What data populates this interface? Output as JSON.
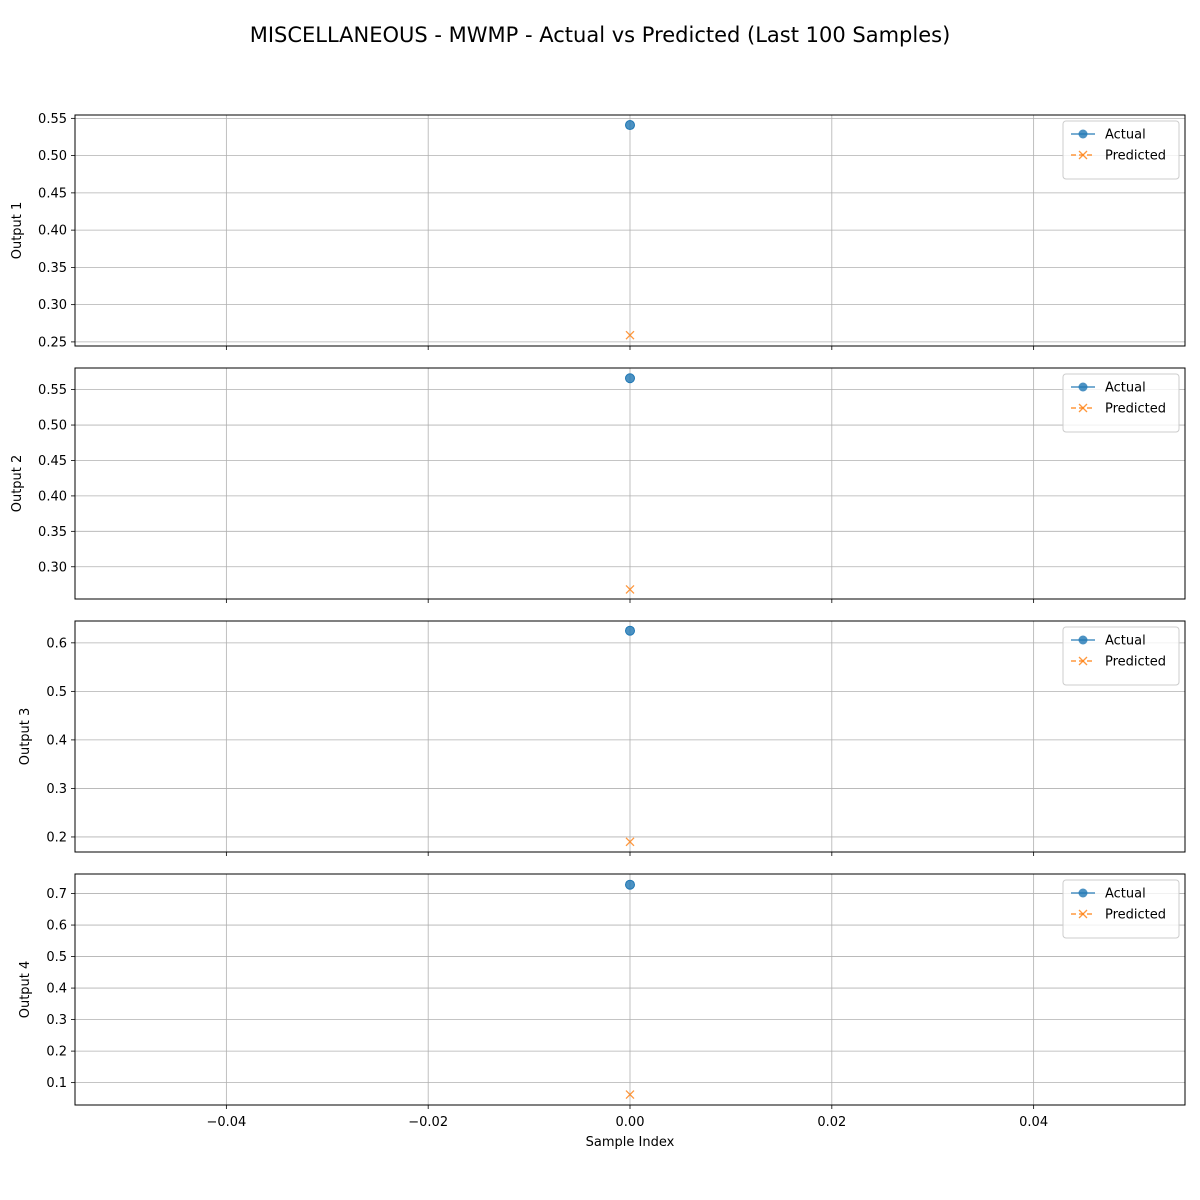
{
  "chart_data": {
    "type": "line",
    "title": "MISCELLANEOUS - MWMP - Actual vs Predicted (Last 100 Samples)",
    "xlabel": "Sample Index",
    "xlim": [
      -0.055,
      0.055
    ],
    "xticks": [
      -0.04,
      -0.02,
      0.0,
      0.02,
      0.04
    ],
    "xtick_labels": [
      "−0.04",
      "−0.02",
      "0.00",
      "0.02",
      "0.04"
    ],
    "grid": true,
    "legend_position": "upper right",
    "colors": {
      "actual": "#1f77b4",
      "predicted": "#ff7f0e"
    },
    "subplots": [
      {
        "ylabel": "Output 1",
        "ylim": [
          0.2445,
          0.5545
        ],
        "yticks": [
          0.25,
          0.3,
          0.35,
          0.4,
          0.45,
          0.5,
          0.55
        ],
        "ytick_labels": [
          "0.25",
          "0.30",
          "0.35",
          "0.40",
          "0.45",
          "0.50",
          "0.55"
        ],
        "series": [
          {
            "name": "Actual",
            "x": [
              0
            ],
            "y": [
              0.541
            ]
          },
          {
            "name": "Predicted",
            "x": [
              0
            ],
            "y": [
              0.259
            ]
          }
        ]
      },
      {
        "ylabel": "Output 2",
        "ylim": [
          0.2545,
          0.5805
        ],
        "yticks": [
          0.3,
          0.35,
          0.4,
          0.45,
          0.5,
          0.55
        ],
        "ytick_labels": [
          "0.30",
          "0.35",
          "0.40",
          "0.45",
          "0.50",
          "0.55"
        ],
        "series": [
          {
            "name": "Actual",
            "x": [
              0
            ],
            "y": [
              0.566
            ]
          },
          {
            "name": "Predicted",
            "x": [
              0
            ],
            "y": [
              0.268
            ]
          }
        ]
      },
      {
        "ylabel": "Output 3",
        "ylim": [
          0.169,
          0.645
        ],
        "yticks": [
          0.2,
          0.3,
          0.4,
          0.5,
          0.6
        ],
        "ytick_labels": [
          "0.2",
          "0.3",
          "0.4",
          "0.5",
          "0.6"
        ],
        "series": [
          {
            "name": "Actual",
            "x": [
              0
            ],
            "y": [
              0.625
            ]
          },
          {
            "name": "Predicted",
            "x": [
              0
            ],
            "y": [
              0.19
            ]
          }
        ]
      },
      {
        "ylabel": "Output 4",
        "ylim": [
          0.029,
          0.762
        ],
        "yticks": [
          0.1,
          0.2,
          0.3,
          0.4,
          0.5,
          0.6,
          0.7
        ],
        "ytick_labels": [
          "0.1",
          "0.2",
          "0.3",
          "0.4",
          "0.5",
          "0.6",
          "0.7"
        ],
        "series": [
          {
            "name": "Actual",
            "x": [
              0
            ],
            "y": [
              0.728
            ]
          },
          {
            "name": "Predicted",
            "x": [
              0
            ],
            "y": [
              0.062
            ]
          }
        ]
      }
    ]
  }
}
